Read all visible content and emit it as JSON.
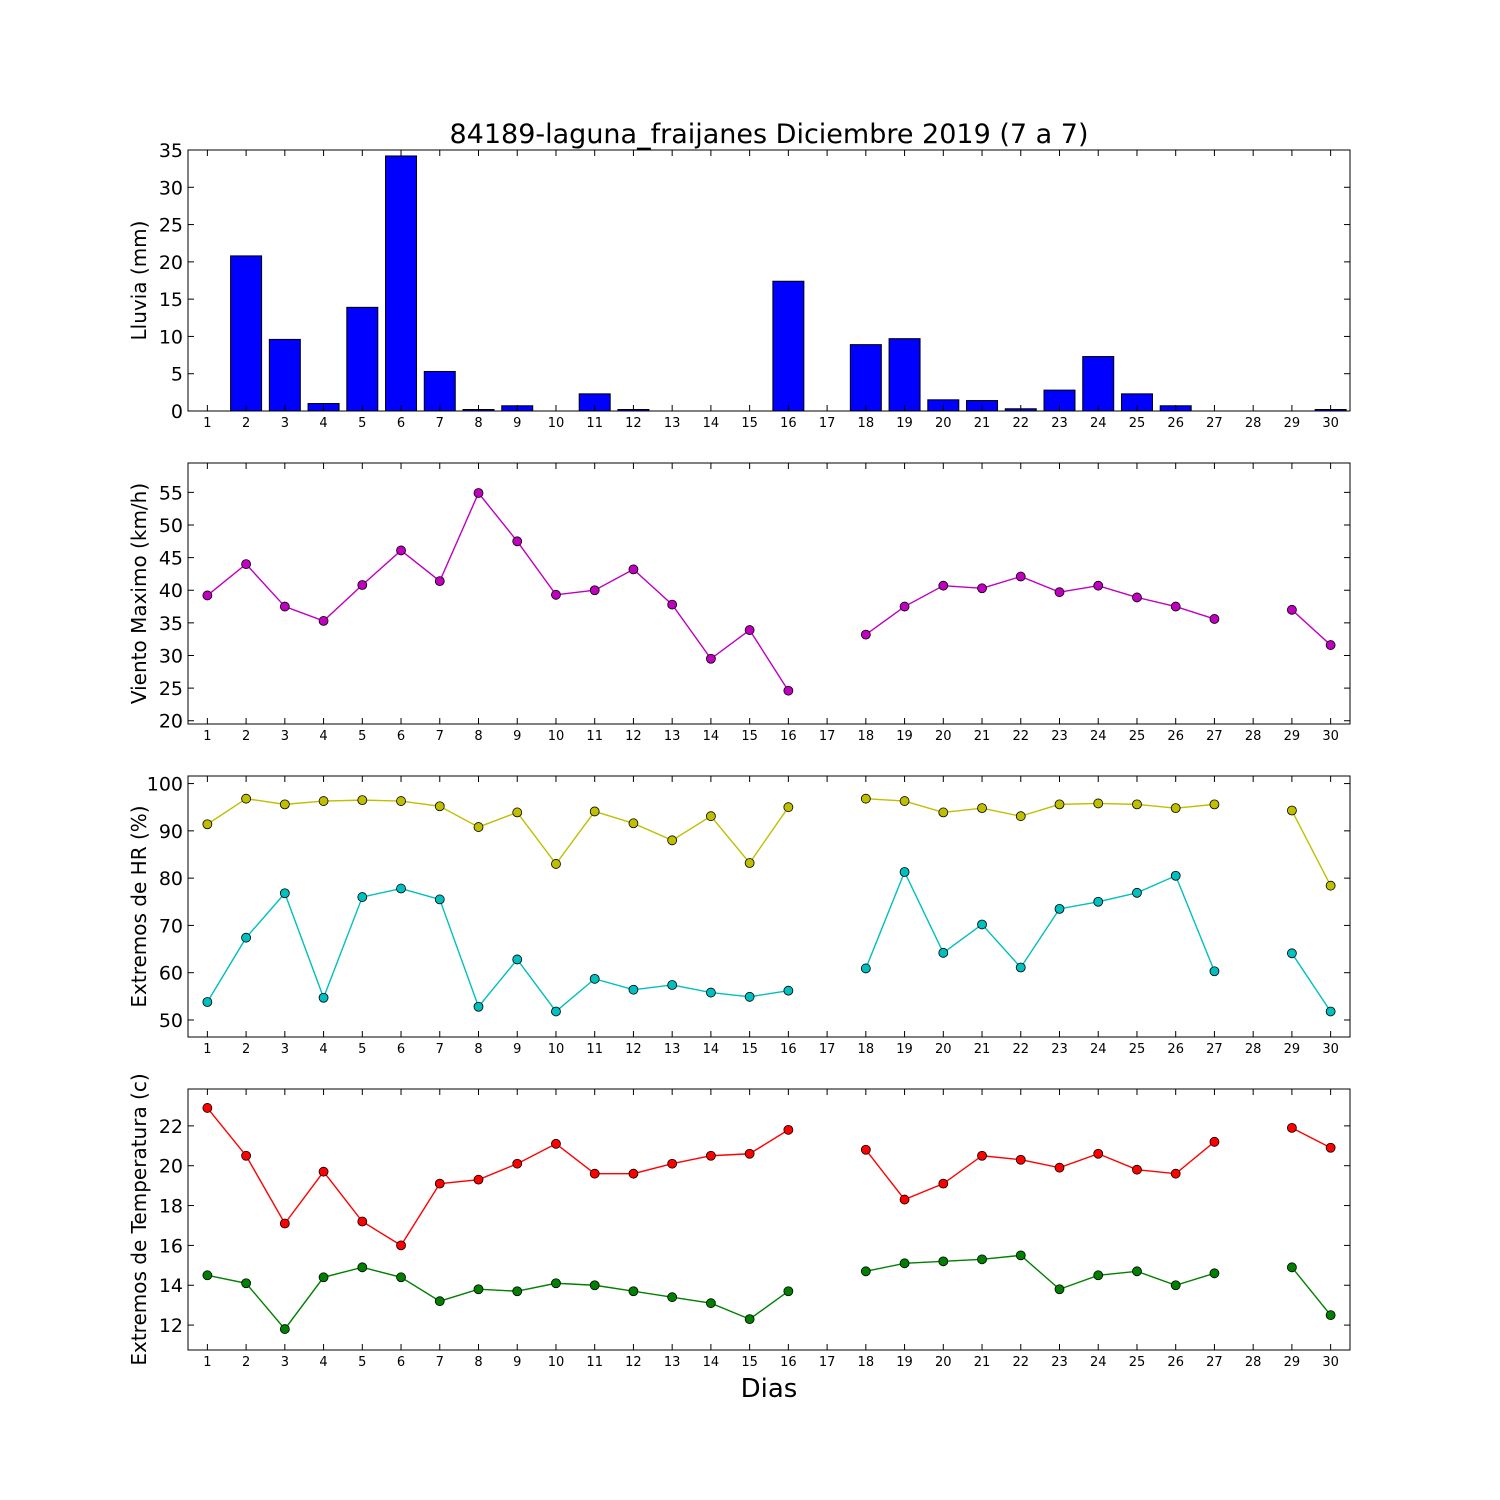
{
  "title": "84189-laguna_fraijanes Diciembre 2019  (7 a 7)",
  "xlabel": "Dias",
  "days": [
    1,
    2,
    3,
    4,
    5,
    6,
    7,
    8,
    9,
    10,
    11,
    12,
    13,
    14,
    15,
    16,
    17,
    18,
    19,
    20,
    21,
    22,
    23,
    24,
    25,
    26,
    27,
    28,
    29,
    30
  ],
  "colors": {
    "rain": "#0000ff",
    "wind": "#bf00bf",
    "hr_max": "#bfbf00",
    "hr_min": "#00bfbf",
    "temp_max": "#ff0000",
    "temp_min": "#008000"
  },
  "chart_data": [
    {
      "type": "bar",
      "ylabel": "Lluvia (mm)",
      "ylim": [
        0,
        35
      ],
      "yticks": [
        0,
        5,
        10,
        15,
        20,
        25,
        30,
        35
      ],
      "x": [
        1,
        2,
        3,
        4,
        5,
        6,
        7,
        8,
        9,
        10,
        11,
        12,
        13,
        14,
        15,
        16,
        17,
        18,
        19,
        20,
        21,
        22,
        23,
        24,
        25,
        26,
        27,
        28,
        29,
        30
      ],
      "series": [
        {
          "color": "#0000ff",
          "values": [
            0,
            20.8,
            9.6,
            1.0,
            13.9,
            34.2,
            5.3,
            0.2,
            0.7,
            0,
            2.3,
            0.2,
            0,
            0,
            0,
            17.4,
            0,
            8.9,
            9.7,
            1.5,
            1.4,
            0.3,
            2.8,
            7.3,
            2.3,
            0.7,
            0,
            0,
            0,
            0.2
          ]
        }
      ]
    },
    {
      "type": "line",
      "ylabel": "Viento Maximo (km/h)",
      "ylim": [
        19.5,
        59.5
      ],
      "yticks": [
        20,
        25,
        30,
        35,
        40,
        45,
        50,
        55
      ],
      "x": [
        1,
        2,
        3,
        4,
        5,
        6,
        7,
        8,
        9,
        10,
        11,
        12,
        13,
        14,
        15,
        16,
        17,
        18,
        19,
        20,
        21,
        22,
        23,
        24,
        25,
        26,
        27,
        28,
        29,
        30
      ],
      "series": [
        {
          "color": "#bf00bf",
          "values": [
            39.2,
            44.0,
            37.5,
            35.3,
            40.8,
            46.1,
            41.4,
            54.9,
            47.5,
            39.3,
            40.0,
            43.2,
            37.8,
            29.5,
            33.9,
            24.6,
            null,
            33.2,
            37.5,
            40.7,
            40.3,
            42.1,
            39.7,
            40.7,
            38.9,
            37.5,
            35.6,
            null,
            37.0,
            31.6
          ]
        }
      ]
    },
    {
      "type": "line",
      "ylabel": "Extremos de HR (%)",
      "ylim": [
        46.4,
        101.6
      ],
      "yticks": [
        50,
        60,
        70,
        80,
        90,
        100
      ],
      "x": [
        1,
        2,
        3,
        4,
        5,
        6,
        7,
        8,
        9,
        10,
        11,
        12,
        13,
        14,
        15,
        16,
        17,
        18,
        19,
        20,
        21,
        22,
        23,
        24,
        25,
        26,
        27,
        28,
        29,
        30
      ],
      "series": [
        {
          "color": "#bfbf00",
          "values": [
            91.4,
            96.8,
            95.6,
            96.3,
            96.5,
            96.3,
            95.2,
            90.8,
            93.9,
            83.0,
            94.1,
            91.6,
            88.0,
            93.1,
            83.2,
            95.0,
            null,
            96.8,
            96.3,
            93.9,
            94.8,
            93.1,
            95.6,
            95.8,
            95.6,
            94.8,
            95.6,
            null,
            94.3,
            78.4
          ]
        },
        {
          "color": "#00bfbf",
          "values": [
            53.8,
            67.4,
            76.8,
            54.7,
            76.0,
            77.8,
            75.5,
            52.8,
            62.8,
            51.8,
            58.7,
            56.4,
            57.4,
            55.8,
            54.9,
            56.2,
            null,
            60.9,
            81.3,
            64.2,
            70.2,
            61.1,
            73.5,
            75.0,
            76.9,
            80.5,
            60.3,
            null,
            64.1,
            51.8
          ]
        }
      ]
    },
    {
      "type": "line",
      "ylabel": "Extremos de Temperatura (c)",
      "ylim": [
        10.75,
        23.85
      ],
      "yticks": [
        12,
        14,
        16,
        18,
        20,
        22
      ],
      "x": [
        1,
        2,
        3,
        4,
        5,
        6,
        7,
        8,
        9,
        10,
        11,
        12,
        13,
        14,
        15,
        16,
        17,
        18,
        19,
        20,
        21,
        22,
        23,
        24,
        25,
        26,
        27,
        28,
        29,
        30
      ],
      "series": [
        {
          "color": "#ff0000",
          "values": [
            22.9,
            20.5,
            17.1,
            19.7,
            17.2,
            16.0,
            19.1,
            19.3,
            20.1,
            21.1,
            19.6,
            19.6,
            20.1,
            20.5,
            20.6,
            21.8,
            null,
            20.8,
            18.3,
            19.1,
            20.5,
            20.3,
            19.9,
            20.6,
            19.8,
            19.6,
            21.2,
            null,
            21.9,
            20.9
          ]
        },
        {
          "color": "#008000",
          "values": [
            14.5,
            14.1,
            11.8,
            14.4,
            14.9,
            14.4,
            13.2,
            13.8,
            13.7,
            14.1,
            14.0,
            13.7,
            13.4,
            13.1,
            12.3,
            13.7,
            null,
            14.7,
            15.1,
            15.2,
            15.3,
            15.5,
            13.8,
            14.5,
            14.7,
            14.0,
            14.6,
            null,
            14.9,
            12.5
          ]
        }
      ]
    }
  ]
}
